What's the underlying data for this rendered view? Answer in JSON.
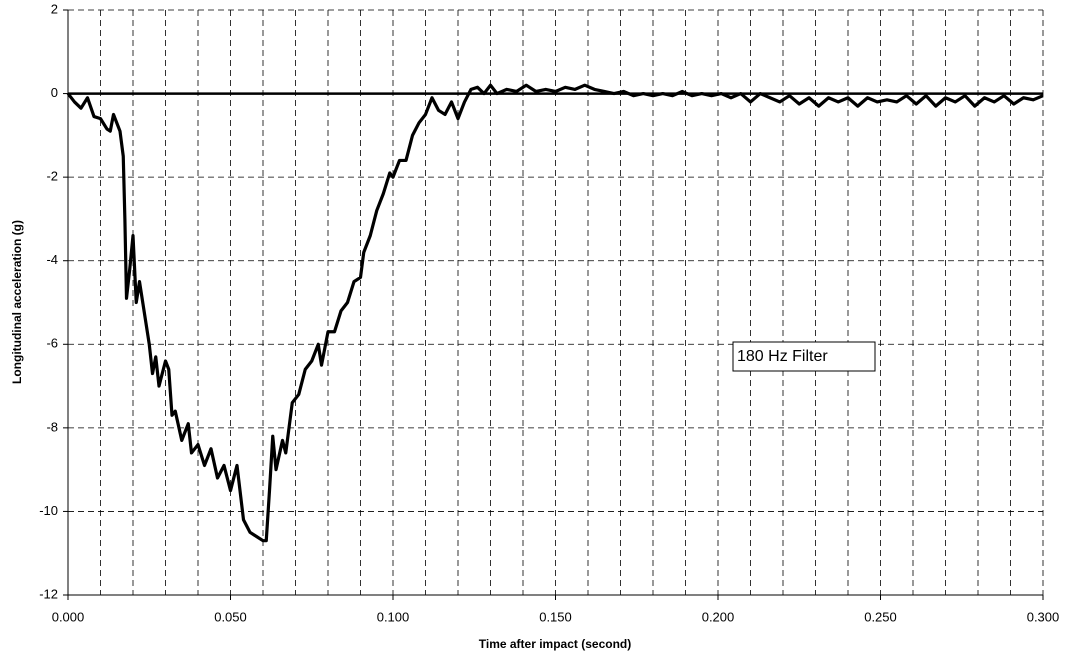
{
  "chart_data": {
    "type": "line",
    "x_label": "Time after impact (second)",
    "y_label": "Longitudinal acceleration (g)",
    "annotation": "180 Hz Filter",
    "color": "#000000",
    "grid": true,
    "xlim": [
      0,
      0.3
    ],
    "ylim": [
      -12,
      2
    ],
    "xticks": [
      {
        "value": 0,
        "label": "0.000"
      },
      {
        "value": 0.05,
        "label": "0.050"
      },
      {
        "value": 0.1,
        "label": "0.100"
      },
      {
        "value": 0.15,
        "label": "0.150"
      },
      {
        "value": 0.2,
        "label": "0.200"
      },
      {
        "value": 0.25,
        "label": "0.250"
      },
      {
        "value": 0.3,
        "label": "0.300"
      }
    ],
    "xgrid": [
      0.01,
      0.02,
      0.03,
      0.04,
      0.05,
      0.06,
      0.07,
      0.08,
      0.09,
      0.1,
      0.11,
      0.12,
      0.13,
      0.14,
      0.15,
      0.16,
      0.17,
      0.18,
      0.19,
      0.2,
      0.21,
      0.22,
      0.23,
      0.24,
      0.25,
      0.26,
      0.27,
      0.28,
      0.29,
      0.3
    ],
    "yticks": [
      -12,
      -10,
      -8,
      -6,
      -4,
      -2,
      0,
      2
    ],
    "x": [
      0,
      0.002,
      0.004,
      0.006,
      0.008,
      0.01,
      0.012,
      0.013,
      0.014,
      0.016,
      0.017,
      0.0175,
      0.018,
      0.019,
      0.02,
      0.021,
      0.022,
      0.023,
      0.025,
      0.026,
      0.027,
      0.028,
      0.03,
      0.031,
      0.032,
      0.033,
      0.035,
      0.037,
      0.038,
      0.04,
      0.042,
      0.044,
      0.046,
      0.048,
      0.05,
      0.052,
      0.054,
      0.056,
      0.058,
      0.06,
      0.061,
      0.062,
      0.063,
      0.064,
      0.066,
      0.067,
      0.069,
      0.071,
      0.073,
      0.075,
      0.077,
      0.078,
      0.08,
      0.082,
      0.084,
      0.086,
      0.088,
      0.09,
      0.091,
      0.093,
      0.095,
      0.097,
      0.099,
      0.1,
      0.102,
      0.104,
      0.106,
      0.108,
      0.11,
      0.112,
      0.114,
      0.116,
      0.118,
      0.12,
      0.122,
      0.124,
      0.126,
      0.128,
      0.13,
      0.132,
      0.135,
      0.138,
      0.141,
      0.144,
      0.147,
      0.15,
      0.153,
      0.156,
      0.159,
      0.162,
      0.165,
      0.168,
      0.171,
      0.174,
      0.177,
      0.18,
      0.183,
      0.186,
      0.189,
      0.192,
      0.195,
      0.198,
      0.201,
      0.204,
      0.207,
      0.21,
      0.213,
      0.216,
      0.219,
      0.222,
      0.225,
      0.228,
      0.231,
      0.234,
      0.237,
      0.24,
      0.243,
      0.246,
      0.249,
      0.252,
      0.255,
      0.258,
      0.261,
      0.264,
      0.267,
      0.27,
      0.273,
      0.276,
      0.279,
      0.282,
      0.285,
      0.288,
      0.291,
      0.294,
      0.297,
      0.3
    ],
    "values": [
      0,
      -0.2,
      -0.35,
      -0.1,
      -0.55,
      -0.6,
      -0.85,
      -0.9,
      -0.5,
      -0.9,
      -1.5,
      -3,
      -4.9,
      -4.2,
      -3.4,
      -5.0,
      -4.5,
      -5.0,
      -6.0,
      -6.7,
      -6.3,
      -7.0,
      -6.4,
      -6.6,
      -7.7,
      -7.6,
      -8.3,
      -7.9,
      -8.6,
      -8.4,
      -8.9,
      -8.5,
      -9.2,
      -8.9,
      -9.5,
      -8.9,
      -10.2,
      -10.5,
      -10.6,
      -10.7,
      -10.7,
      -9.5,
      -8.2,
      -9.0,
      -8.3,
      -8.6,
      -7.4,
      -7.2,
      -6.6,
      -6.4,
      -6.0,
      -6.5,
      -5.7,
      -5.7,
      -5.2,
      -5.0,
      -4.5,
      -4.4,
      -3.8,
      -3.4,
      -2.8,
      -2.4,
      -1.9,
      -2.0,
      -1.6,
      -1.6,
      -1.0,
      -0.7,
      -0.5,
      -0.1,
      -0.4,
      -0.5,
      -0.2,
      -0.6,
      -0.2,
      0.1,
      0.15,
      0.0,
      0.2,
      0.0,
      0.1,
      0.05,
      0.2,
      0.05,
      0.1,
      0.05,
      0.15,
      0.1,
      0.2,
      0.1,
      0.05,
      0.0,
      0.05,
      -0.05,
      0.0,
      -0.05,
      0.0,
      -0.05,
      0.05,
      -0.05,
      0.0,
      -0.05,
      0.0,
      -0.1,
      0.0,
      -0.2,
      0.0,
      -0.1,
      -0.2,
      -0.05,
      -0.25,
      -0.1,
      -0.3,
      -0.1,
      -0.2,
      -0.1,
      -0.3,
      -0.1,
      -0.2,
      -0.15,
      -0.2,
      -0.05,
      -0.25,
      -0.05,
      -0.3,
      -0.1,
      -0.2,
      -0.05,
      -0.3,
      -0.1,
      -0.2,
      -0.05,
      -0.25,
      -0.1,
      -0.15,
      -0.05
    ]
  }
}
